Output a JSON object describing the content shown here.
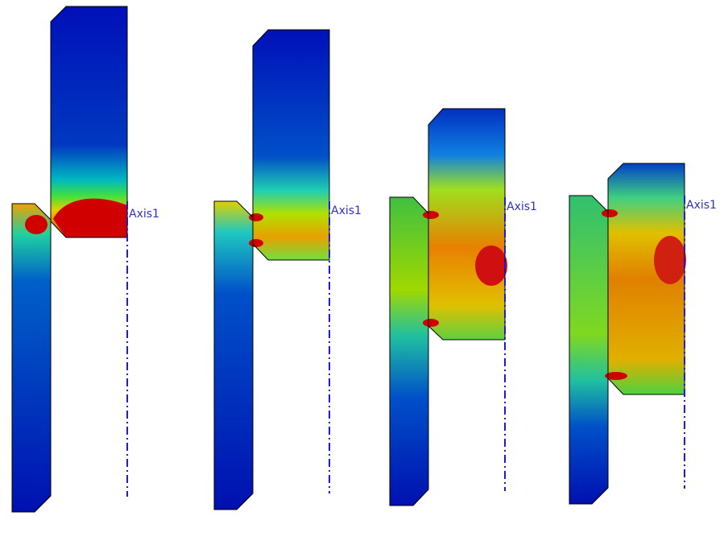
{
  "panels": [
    {
      "axis_label": "Axis1"
    },
    {
      "axis_label": "Axis1"
    },
    {
      "axis_label": "Axis1"
    },
    {
      "axis_label": "Axis1"
    }
  ]
}
